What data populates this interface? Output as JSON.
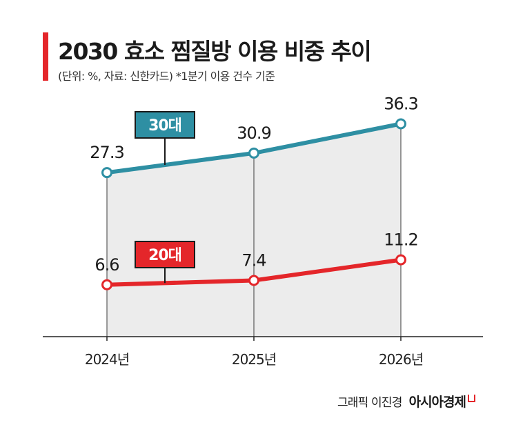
{
  "header": {
    "title": "2030 효소 찜질방 이용 비중 추이",
    "subtitle": "(단위: %, 자료: 신한카드) *1분기 이용 건수 기준"
  },
  "credit": {
    "byline": "그래픽 이진경",
    "brand": "아시아경제"
  },
  "colors": {
    "accent": "#e4262a",
    "teal": "#2e8fa3",
    "area": "#ececec"
  },
  "chart_data": {
    "type": "line",
    "categories": [
      "2024년",
      "2025년",
      "2026년"
    ],
    "series": [
      {
        "name": "30대",
        "values": [
          27.3,
          30.9,
          36.3
        ],
        "value_labels": [
          "27.3",
          "30.9",
          "36.3"
        ],
        "color": "#2e8fa3"
      },
      {
        "name": "20대",
        "values": [
          6.6,
          7.4,
          11.2
        ],
        "value_labels": [
          "6.6",
          "7.4",
          "11.2"
        ],
        "color": "#e4262a"
      }
    ],
    "title": "2030 효소 찜질방 이용 비중 추이",
    "xlabel": "",
    "ylabel": "",
    "area_fill_under": "30대",
    "grid": false,
    "legend": "inline-tags"
  }
}
